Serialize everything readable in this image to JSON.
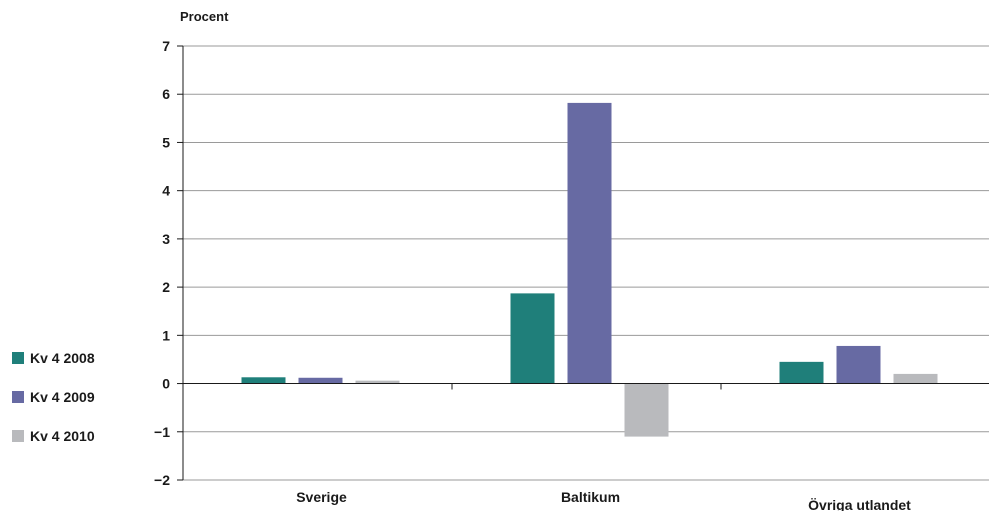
{
  "chart_data": {
    "type": "bar",
    "title": "",
    "ylabel": "Procent",
    "xlabel": "",
    "categories": [
      "Sverige",
      "Baltikum",
      "Övriga utlandet"
    ],
    "series": [
      {
        "name": "Kv 4 2008",
        "color": "#1f7f7a",
        "values": [
          0.13,
          1.87,
          0.45
        ]
      },
      {
        "name": "Kv 4 2009",
        "color": "#676aa3",
        "values": [
          0.12,
          5.82,
          0.78
        ]
      },
      {
        "name": "Kv 4 2010",
        "color": "#b9babd",
        "values": [
          0.06,
          -1.1,
          0.2
        ]
      }
    ],
    "ylim": [
      -2,
      7
    ],
    "yticks": [
      -2,
      -1,
      0,
      1,
      2,
      3,
      4,
      5,
      6,
      7
    ],
    "ytick_labels": [
      "−2",
      "−1",
      "0",
      "1",
      "2",
      "3",
      "4",
      "5",
      "6",
      "7"
    ],
    "grid": true,
    "legend_position": "left"
  }
}
